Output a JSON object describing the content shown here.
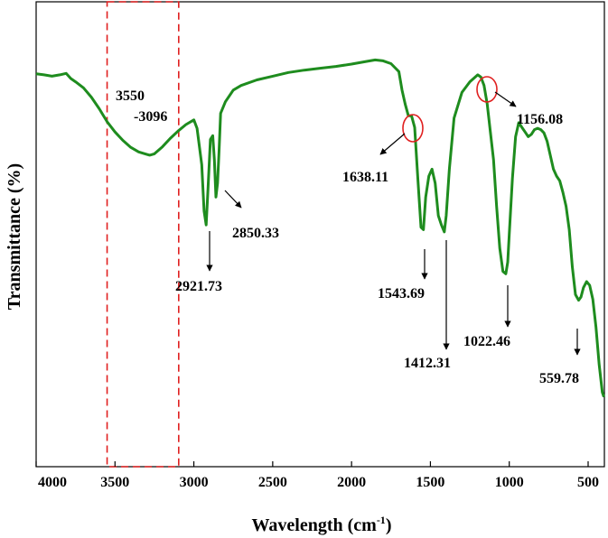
{
  "chart_data": {
    "type": "line",
    "title": "",
    "xlabel": "Wavelength (cm",
    "xlabel_sup": "-1",
    "xlabel_close": ")",
    "ylabel": "Transmittance (%)",
    "xlim": [
      4000,
      400
    ],
    "ylim": [
      0,
      100
    ],
    "x_ticks": [
      "4000",
      "3500",
      "3000",
      "2500",
      "2000",
      "1500",
      "1000",
      "500"
    ],
    "grid": false,
    "series": [
      {
        "color": "#1e8c1e",
        "x": [
          4000,
          3950,
          3900,
          3850,
          3810,
          3780,
          3750,
          3700,
          3650,
          3600,
          3550,
          3500,
          3450,
          3400,
          3350,
          3300,
          3280,
          3250,
          3200,
          3150,
          3100,
          3050,
          3000,
          2980,
          2950,
          2935,
          2922,
          2910,
          2895,
          2880,
          2870,
          2860,
          2850,
          2840,
          2830,
          2800,
          2750,
          2700,
          2600,
          2500,
          2400,
          2300,
          2200,
          2100,
          2000,
          1900,
          1850,
          1800,
          1750,
          1700,
          1680,
          1660,
          1640,
          1620,
          1600,
          1580,
          1560,
          1544,
          1530,
          1510,
          1490,
          1470,
          1450,
          1430,
          1412,
          1400,
          1380,
          1350,
          1300,
          1250,
          1200,
          1180,
          1160,
          1140,
          1120,
          1100,
          1080,
          1060,
          1040,
          1022,
          1010,
          1000,
          980,
          960,
          940,
          920,
          900,
          880,
          860,
          840,
          820,
          800,
          780,
          760,
          740,
          720,
          700,
          680,
          660,
          640,
          620,
          600,
          580,
          560,
          545,
          530,
          510,
          490,
          470,
          450,
          430,
          410,
          400
        ],
        "y": [
          84.5,
          84.3,
          84,
          84.3,
          84.6,
          83.5,
          82.8,
          81.5,
          79.5,
          77,
          74.2,
          72,
          70.2,
          68.7,
          67.7,
          67.2,
          67,
          67.3,
          68.8,
          70.6,
          72.2,
          73.6,
          74.6,
          72.8,
          65,
          55,
          52,
          60,
          70.4,
          71.2,
          66,
          58,
          61,
          68,
          76,
          78.5,
          81,
          82,
          83.2,
          84,
          84.8,
          85.3,
          85.7,
          86.1,
          86.6,
          87.2,
          87.5,
          87.3,
          86.7,
          85,
          81,
          78,
          75.5,
          75.5,
          73,
          62,
          51.5,
          51,
          58,
          62.5,
          64,
          61,
          54,
          52,
          50.5,
          54,
          64,
          75,
          80.5,
          82.8,
          84.3,
          83.8,
          82,
          78,
          72,
          66,
          56,
          47,
          42,
          41.5,
          44,
          50,
          62,
          71,
          74,
          73,
          72,
          71,
          71.5,
          72.5,
          72.8,
          72.5,
          71.8,
          70,
          67,
          64,
          62.5,
          61.5,
          59,
          56,
          51,
          43,
          37,
          35.8,
          36.5,
          38.5,
          39.8,
          39,
          36,
          30,
          22,
          16,
          15
        ]
      }
    ],
    "annotations": [
      {
        "label_1": "3550",
        "label_2": "-3096"
      },
      {
        "label": "2921.73"
      },
      {
        "label": "2850.33"
      },
      {
        "label": "1638.11"
      },
      {
        "label": "1543.69"
      },
      {
        "label": "1412.31"
      },
      {
        "label": "1156.08"
      },
      {
        "label": "1022.46"
      },
      {
        "label": "559.78"
      }
    ],
    "highlight_region": [
      3550,
      3096
    ],
    "circled_peaks": [
      1638.11,
      1156.08
    ]
  }
}
